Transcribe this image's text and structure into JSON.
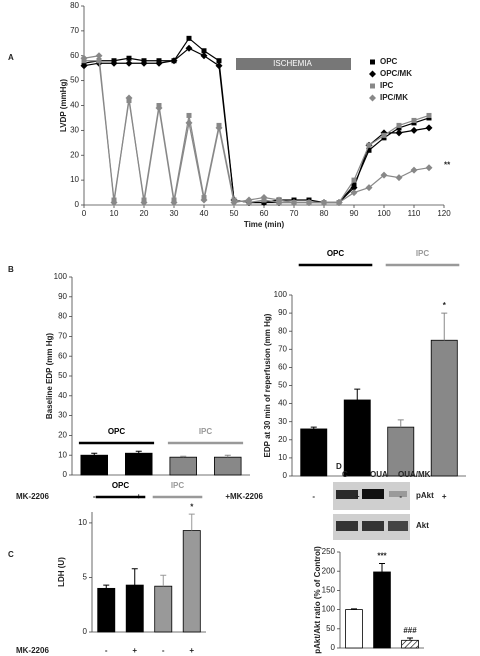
{
  "chart_data": [
    {
      "type": "line",
      "panel": "A",
      "y_label": "LVDP (mmHg)",
      "x_label": "Time (min)",
      "x": [
        0,
        5,
        10,
        15,
        20,
        25,
        30,
        35,
        40,
        45,
        50,
        55,
        60,
        65,
        70,
        75,
        80,
        85,
        90,
        95,
        100,
        105,
        110,
        115
      ],
      "series": [
        {
          "name": "OPC",
          "color": "#000000",
          "marker": "square",
          "values": [
            57,
            58,
            58,
            59,
            58,
            58,
            58,
            67,
            62,
            58,
            2,
            1,
            1,
            2,
            2,
            2,
            1,
            1,
            8,
            22,
            27,
            31,
            33,
            35
          ]
        },
        {
          "name": "OPC/MK",
          "color": "#000000",
          "marker": "diamond",
          "values": [
            56,
            57,
            57,
            57,
            57,
            57,
            58,
            63,
            60,
            56,
            2,
            1,
            1,
            1,
            1,
            1,
            1,
            1,
            7,
            24,
            29,
            29,
            30,
            31
          ]
        },
        {
          "name": "IPC",
          "color": "#888888",
          "marker": "square",
          "values": [
            58,
            58,
            2,
            42,
            2,
            40,
            2,
            36,
            3,
            32,
            2,
            1,
            2,
            1,
            1,
            1,
            1,
            1,
            10,
            24,
            28,
            32,
            34,
            36
          ]
        },
        {
          "name": "IPC/MK",
          "color": "#888888",
          "marker": "diamond",
          "values": [
            59,
            60,
            1,
            43,
            1,
            39,
            1,
            33,
            2,
            31,
            1,
            2,
            3,
            2,
            1,
            1,
            1,
            1,
            5,
            7,
            12,
            11,
            14,
            15
          ]
        }
      ],
      "xlim": [
        0,
        120
      ],
      "xticks": [
        0,
        10,
        20,
        30,
        40,
        50,
        60,
        70,
        80,
        90,
        100,
        110,
        120
      ],
      "ylim": [
        0,
        80
      ],
      "yticks": [
        0,
        10,
        20,
        30,
        40,
        50,
        60,
        70,
        80
      ],
      "region": {
        "text": "ISCHEMIA",
        "x": [
          50,
          85
        ],
        "color": "#777777"
      },
      "annotations": [
        {
          "text": "**",
          "x": 120,
          "y": 16
        }
      ]
    },
    {
      "type": "bar",
      "panel": "B",
      "y_label": "Baseline EDP (mm Hg)",
      "x_label": "MK-2206",
      "categories": [
        "-",
        "+",
        "-",
        "+"
      ],
      "values": [
        10,
        11,
        9,
        9
      ],
      "errors": [
        1,
        1,
        0.5,
        1
      ],
      "colors": [
        "#000000",
        "#000000",
        "#888888",
        "#888888"
      ],
      "groups": [
        {
          "name": "OPC",
          "color": "#000000"
        },
        {
          "name": "IPC",
          "color": "#999999"
        }
      ],
      "ylim": [
        0,
        100
      ],
      "yticks": [
        0,
        10,
        20,
        30,
        40,
        50,
        60,
        70,
        80,
        90,
        100
      ]
    },
    {
      "type": "bar",
      "y_label": "EDP at 30 min of reperfusion (mm Hg)",
      "x_label": "MK-2206",
      "categories": [
        "-",
        "+",
        "-",
        "+"
      ],
      "values": [
        26,
        42,
        27,
        75
      ],
      "errors": [
        1,
        6,
        4,
        15
      ],
      "colors": [
        "#000000",
        "#000000",
        "#888888",
        "#888888"
      ],
      "groups": [
        {
          "name": "OPC",
          "color": "#000000"
        },
        {
          "name": "IPC",
          "color": "#999999"
        }
      ],
      "annotations": [
        {
          "text": "*",
          "at": 3
        }
      ],
      "ylim": [
        0,
        100
      ],
      "yticks": [
        0,
        10,
        20,
        30,
        40,
        50,
        60,
        70,
        80,
        90,
        100
      ]
    },
    {
      "type": "bar",
      "panel": "C",
      "y_label": "LDH (U)",
      "x_label": "MK-2206",
      "categories": [
        "-",
        "+",
        "-",
        "+"
      ],
      "values": [
        4,
        4.3,
        4.2,
        9.3
      ],
      "errors": [
        0.3,
        1.5,
        1,
        1.5
      ],
      "colors": [
        "#000000",
        "#000000",
        "#999999",
        "#999999"
      ],
      "groups": [
        {
          "name": "OPC",
          "color": "#000000"
        },
        {
          "name": "IPC",
          "color": "#999999"
        }
      ],
      "annotations": [
        {
          "text": "*",
          "at": 3
        }
      ],
      "ylim": [
        0,
        11
      ],
      "yticks": [
        0,
        5,
        10
      ]
    },
    {
      "type": "bar",
      "panel": "D",
      "y_label": "pAkt/Akt ratio (% of Control)",
      "categories": [
        "C",
        "OUA",
        "OUA/MK"
      ],
      "values": [
        100,
        198,
        20
      ],
      "errors": [
        2,
        22,
        6
      ],
      "colors": [
        "#ffffff",
        "#000000",
        "#ffffff"
      ],
      "hatch": [
        false,
        false,
        true
      ],
      "blot_bands": [
        "pAkt",
        "Akt"
      ],
      "annotations": [
        {
          "text": "***",
          "at": 1
        },
        {
          "text": "###",
          "at": 2
        }
      ],
      "ylim": [
        0,
        250
      ],
      "yticks": [
        0,
        50,
        100,
        150,
        200,
        250
      ]
    }
  ]
}
